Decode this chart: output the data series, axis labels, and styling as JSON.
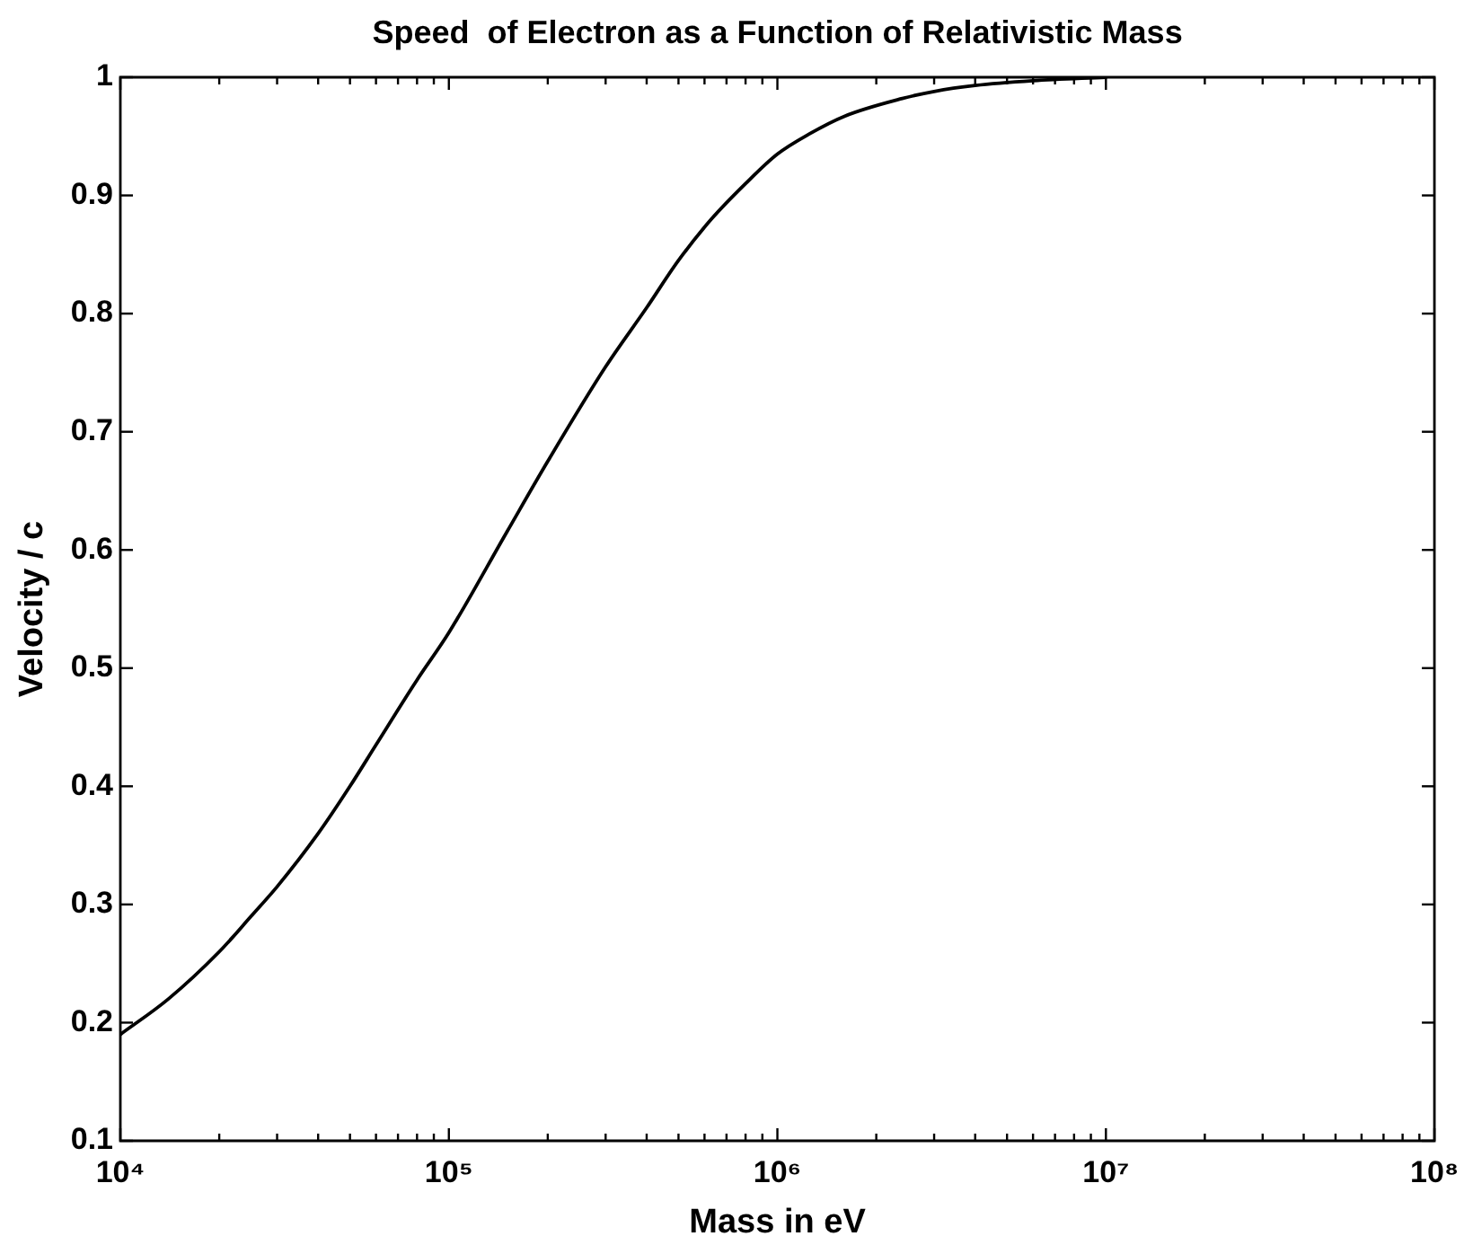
{
  "chart_data": {
    "type": "line",
    "title": "Speed  of Electron as a Function of Relativistic Mass",
    "xlabel": "Mass in eV",
    "ylabel": "Velocity / c",
    "log": "x",
    "x": [
      10000,
      14000,
      20000,
      25000,
      30000,
      40000,
      50000,
      60000,
      80000,
      100000,
      150000,
      200000,
      300000,
      400000,
      500000,
      630000,
      800000,
      1000000,
      1250000,
      1600000,
      2400000,
      3000000,
      4000000,
      6000000,
      10000000
    ],
    "values": [
      0.19,
      0.22,
      0.26,
      0.29,
      0.315,
      0.36,
      0.4,
      0.435,
      0.49,
      0.53,
      0.615,
      0.675,
      0.755,
      0.805,
      0.845,
      0.88,
      0.91,
      0.935,
      0.952,
      0.967,
      0.982,
      0.988,
      0.993,
      0.997,
      1
    ],
    "color": "#000000",
    "xlim": [
      10000,
      100000000
    ],
    "ylim": [
      0.1,
      1
    ],
    "xticks": [
      {
        "value": 10000,
        "label": "10⁴"
      },
      {
        "value": 20000,
        "label": null
      },
      {
        "value": 30000,
        "label": null
      },
      {
        "value": 40000,
        "label": null
      },
      {
        "value": 50000,
        "label": null
      },
      {
        "value": 60000,
        "label": null
      },
      {
        "value": 70000,
        "label": null
      },
      {
        "value": 80000,
        "label": null
      },
      {
        "value": 90000,
        "label": null
      },
      {
        "value": 100000,
        "label": "10⁵"
      },
      {
        "value": 200000,
        "label": null
      },
      {
        "value": 300000,
        "label": null
      },
      {
        "value": 400000,
        "label": null
      },
      {
        "value": 500000,
        "label": null
      },
      {
        "value": 600000,
        "label": null
      },
      {
        "value": 700000,
        "label": null
      },
      {
        "value": 800000,
        "label": null
      },
      {
        "value": 900000,
        "label": null
      },
      {
        "value": 1000000,
        "label": "10⁶"
      },
      {
        "value": 2000000,
        "label": null
      },
      {
        "value": 3000000,
        "label": null
      },
      {
        "value": 4000000,
        "label": null
      },
      {
        "value": 5000000,
        "label": null
      },
      {
        "value": 6000000,
        "label": null
      },
      {
        "value": 7000000,
        "label": null
      },
      {
        "value": 8000000,
        "label": null
      },
      {
        "value": 9000000,
        "label": null
      },
      {
        "value": 10000000,
        "label": "10⁷"
      },
      {
        "value": 20000000,
        "label": null
      },
      {
        "value": 30000000,
        "label": null
      },
      {
        "value": 40000000,
        "label": null
      },
      {
        "value": 50000000,
        "label": null
      },
      {
        "value": 60000000,
        "label": null
      },
      {
        "value": 70000000,
        "label": null
      },
      {
        "value": 80000000,
        "label": null
      },
      {
        "value": 90000000,
        "label": null
      },
      {
        "value": 100000000,
        "label": "10⁸"
      }
    ],
    "yticks": [
      0.1,
      0.2,
      0.3,
      0.4,
      0.5,
      0.6,
      0.7,
      0.8,
      0.9,
      1
    ],
    "grid": false,
    "legend": false,
    "marker": "none",
    "line_style": "solid"
  }
}
